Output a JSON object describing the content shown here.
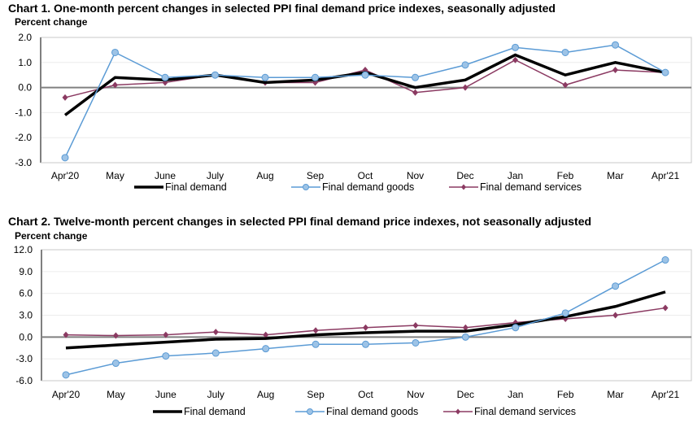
{
  "chart_data": [
    {
      "type": "line",
      "title": "Chart 1. One-month percent changes in selected PPI final demand price indexes, seasonally adjusted",
      "ylabel": "Percent change",
      "xlabel": "",
      "categories": [
        "Apr'20",
        "May",
        "June",
        "July",
        "Aug",
        "Sep",
        "Oct",
        "Nov",
        "Dec",
        "Jan",
        "Feb",
        "Mar",
        "Apr'21"
      ],
      "ylim": [
        -3.0,
        2.0
      ],
      "yticks": [
        "2.0",
        "1.0",
        "0.0",
        "-1.0",
        "-2.0",
        "-3.0"
      ],
      "ytick_values": [
        2.0,
        1.0,
        0.0,
        -1.0,
        -2.0,
        -3.0
      ],
      "grid": true,
      "legend_position": "bottom",
      "series": [
        {
          "name": "Final demand",
          "color": "#000000",
          "marker": "none",
          "values": [
            -1.1,
            0.4,
            0.3,
            0.5,
            0.2,
            0.3,
            0.6,
            0.0,
            0.3,
            1.3,
            0.5,
            1.0,
            0.6
          ]
        },
        {
          "name": "Final demand goods",
          "color": "#5b9bd5",
          "marker": "circle",
          "values": [
            -2.8,
            1.4,
            0.4,
            0.5,
            0.4,
            0.4,
            0.5,
            0.4,
            0.9,
            1.6,
            1.4,
            1.7,
            0.6
          ]
        },
        {
          "name": "Final demand services",
          "color": "#8b3a62",
          "marker": "diamond",
          "values": [
            -0.4,
            0.1,
            0.2,
            0.5,
            0.2,
            0.2,
            0.7,
            -0.2,
            0.0,
            1.1,
            0.1,
            0.7,
            0.6
          ]
        }
      ]
    },
    {
      "type": "line",
      "title": "Chart 2. Twelve-month percent changes in selected PPI final demand price indexes, not seasonally adjusted",
      "ylabel": "Percent change",
      "xlabel": "",
      "categories": [
        "Apr'20",
        "May",
        "June",
        "July",
        "Aug",
        "Sep",
        "Oct",
        "Nov",
        "Dec",
        "Jan",
        "Feb",
        "Mar",
        "Apr'21"
      ],
      "ylim": [
        -6.0,
        12.0
      ],
      "yticks": [
        "12.0",
        "9.0",
        "6.0",
        "3.0",
        "0.0",
        "-3.0",
        "-6.0"
      ],
      "ytick_values": [
        12.0,
        9.0,
        6.0,
        3.0,
        0.0,
        -3.0,
        -6.0
      ],
      "grid": true,
      "legend_position": "bottom",
      "series": [
        {
          "name": "Final demand",
          "color": "#000000",
          "marker": "none",
          "values": [
            -1.5,
            -1.1,
            -0.7,
            -0.3,
            -0.2,
            0.3,
            0.6,
            0.8,
            0.8,
            1.7,
            2.8,
            4.2,
            6.2
          ]
        },
        {
          "name": "Final demand goods",
          "color": "#5b9bd5",
          "marker": "circle",
          "values": [
            -5.2,
            -3.6,
            -2.6,
            -2.2,
            -1.6,
            -1.0,
            -1.0,
            -0.8,
            0.0,
            1.3,
            3.3,
            7.0,
            10.6
          ]
        },
        {
          "name": "Final demand services",
          "color": "#8b3a62",
          "marker": "diamond",
          "values": [
            0.3,
            0.2,
            0.3,
            0.7,
            0.3,
            0.9,
            1.3,
            1.6,
            1.3,
            2.0,
            2.5,
            3.0,
            4.0
          ]
        }
      ]
    }
  ]
}
